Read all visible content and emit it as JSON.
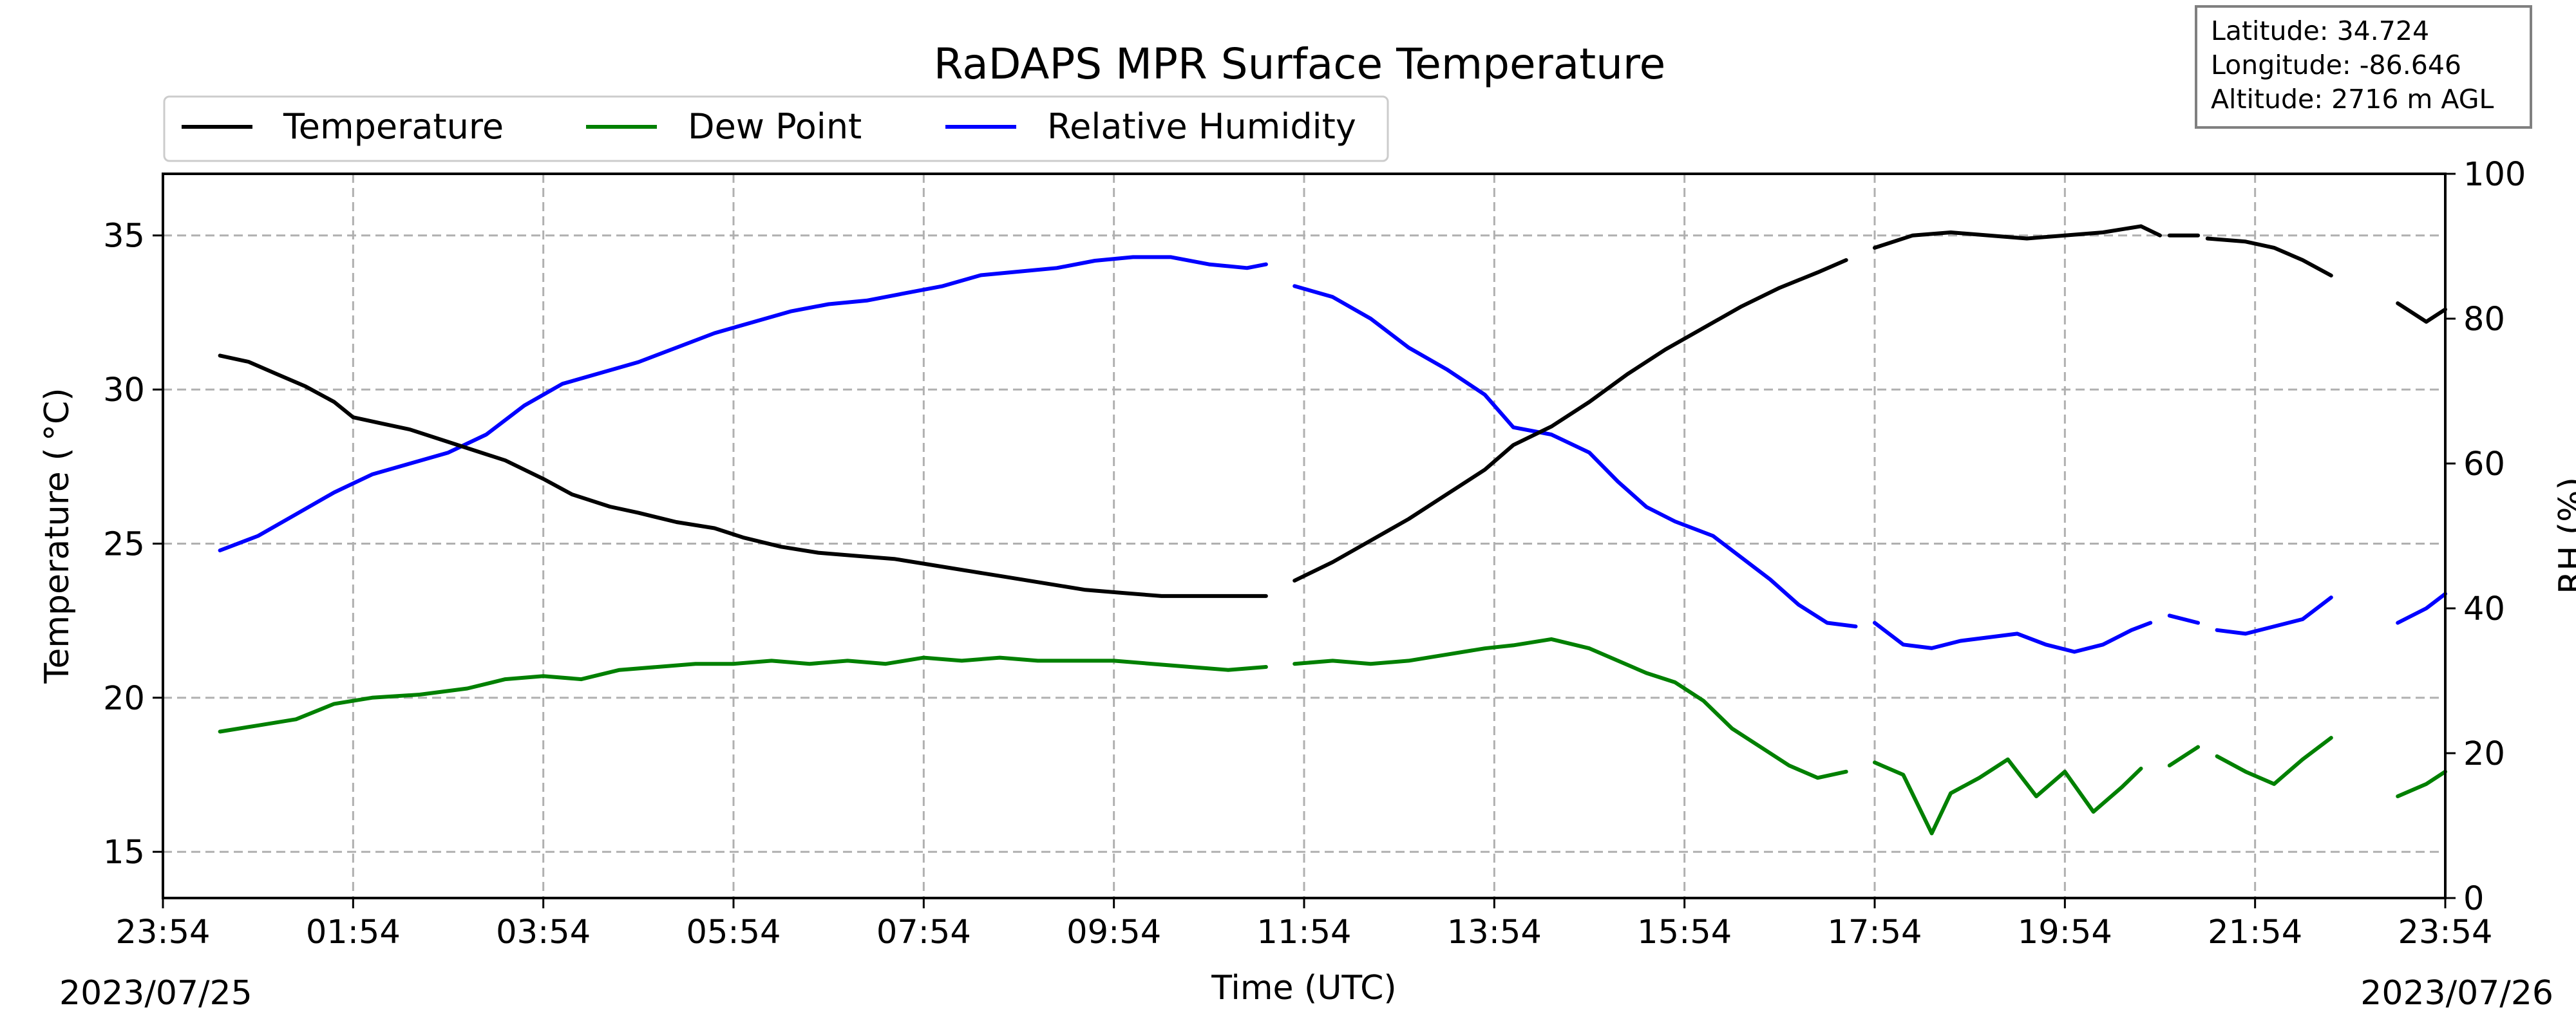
{
  "chart_data": {
    "type": "line",
    "title": "RaDAPS MPR Surface Temperature",
    "xlabel": "Time (UTC)",
    "ylabel_left": "Temperature ($^\\circ$C)",
    "ylabel_left_display": "Temperature ( °C)",
    "ylabel_right": "RH (%)",
    "x_ticks": [
      "23:54",
      "01:54",
      "03:54",
      "05:54",
      "07:54",
      "09:54",
      "11:54",
      "13:54",
      "15:54",
      "17:54",
      "19:54",
      "21:54",
      "23:54"
    ],
    "x_range_hours": [
      0,
      24
    ],
    "start_date_label": "2023/07/25",
    "end_date_label": "2023/07/26",
    "ylim_left": [
      13.5,
      37
    ],
    "yticks_left": [
      15,
      20,
      25,
      30,
      35
    ],
    "ylim_right": [
      0,
      100
    ],
    "yticks_right": [
      0,
      20,
      40,
      60,
      80,
      100
    ],
    "grid": true,
    "legend_placement": "top-left, above plot",
    "legend": [
      "Temperature",
      "Dew Point",
      "Relative Humidity"
    ],
    "info_box": {
      "latitude": "Latitude: 34.724",
      "longitude": "Longitude: -86.646",
      "altitude": "Altitude: 2716 m AGL"
    },
    "series": [
      {
        "name": "Temperature",
        "axis": "left",
        "color": "#000000",
        "segments": [
          [
            [
              0.6,
              31.1
            ],
            [
              0.9,
              30.9
            ],
            [
              1.2,
              30.5
            ],
            [
              1.5,
              30.1
            ],
            [
              1.8,
              29.6
            ],
            [
              2.0,
              29.1
            ],
            [
              2.3,
              28.9
            ],
            [
              2.6,
              28.7
            ],
            [
              3.0,
              28.3
            ],
            [
              3.3,
              28.0
            ],
            [
              3.6,
              27.7
            ],
            [
              4.0,
              27.1
            ],
            [
              4.3,
              26.6
            ],
            [
              4.7,
              26.2
            ],
            [
              5.0,
              26.0
            ],
            [
              5.4,
              25.7
            ],
            [
              5.8,
              25.5
            ],
            [
              6.1,
              25.2
            ],
            [
              6.5,
              24.9
            ],
            [
              6.9,
              24.7
            ],
            [
              7.3,
              24.6
            ],
            [
              7.7,
              24.5
            ],
            [
              8.1,
              24.3
            ],
            [
              8.5,
              24.1
            ],
            [
              8.9,
              23.9
            ],
            [
              9.3,
              23.7
            ],
            [
              9.7,
              23.5
            ],
            [
              10.1,
              23.4
            ],
            [
              10.5,
              23.3
            ],
            [
              10.9,
              23.3
            ],
            [
              11.3,
              23.3
            ],
            [
              11.6,
              23.3
            ]
          ],
          [
            [
              11.9,
              23.8
            ],
            [
              12.3,
              24.4
            ],
            [
              12.7,
              25.1
            ],
            [
              13.1,
              25.8
            ],
            [
              13.5,
              26.6
            ],
            [
              13.9,
              27.4
            ],
            [
              14.2,
              28.2
            ],
            [
              14.6,
              28.8
            ],
            [
              15.0,
              29.6
            ],
            [
              15.4,
              30.5
            ],
            [
              15.8,
              31.3
            ],
            [
              16.2,
              32.0
            ],
            [
              16.6,
              32.7
            ],
            [
              17.0,
              33.3
            ],
            [
              17.4,
              33.8
            ],
            [
              17.7,
              34.2
            ]
          ],
          [
            [
              18.0,
              34.6
            ],
            [
              18.4,
              35.0
            ],
            [
              18.8,
              35.1
            ],
            [
              19.2,
              35.0
            ],
            [
              19.6,
              34.9
            ],
            [
              20.0,
              35.0
            ],
            [
              20.4,
              35.1
            ],
            [
              20.8,
              35.3
            ],
            [
              21.0,
              35.0
            ]
          ],
          [
            [
              21.1,
              35.0
            ],
            [
              21.4,
              35.0
            ]
          ],
          [
            [
              21.5,
              34.9
            ],
            [
              21.9,
              34.8
            ],
            [
              22.2,
              34.6
            ],
            [
              22.5,
              34.2
            ],
            [
              22.8,
              33.7
            ]
          ],
          [
            [
              23.5,
              32.8
            ],
            [
              23.8,
              32.2
            ],
            [
              24.0,
              32.6
            ]
          ]
        ]
      },
      {
        "name": "Dew Point",
        "axis": "left",
        "color": "#008000",
        "segments": [
          [
            [
              0.6,
              18.9
            ],
            [
              1.0,
              19.1
            ],
            [
              1.4,
              19.3
            ],
            [
              1.8,
              19.8
            ],
            [
              2.2,
              20.0
            ],
            [
              2.7,
              20.1
            ],
            [
              3.2,
              20.3
            ],
            [
              3.6,
              20.6
            ],
            [
              4.0,
              20.7
            ],
            [
              4.4,
              20.6
            ],
            [
              4.8,
              20.9
            ],
            [
              5.2,
              21.0
            ],
            [
              5.6,
              21.1
            ],
            [
              6.0,
              21.1
            ],
            [
              6.4,
              21.2
            ],
            [
              6.8,
              21.1
            ],
            [
              7.2,
              21.2
            ],
            [
              7.6,
              21.1
            ],
            [
              8.0,
              21.3
            ],
            [
              8.4,
              21.2
            ],
            [
              8.8,
              21.3
            ],
            [
              9.2,
              21.2
            ],
            [
              9.6,
              21.2
            ],
            [
              10.0,
              21.2
            ],
            [
              10.4,
              21.1
            ],
            [
              10.8,
              21.0
            ],
            [
              11.2,
              20.9
            ],
            [
              11.6,
              21.0
            ]
          ],
          [
            [
              11.9,
              21.1
            ],
            [
              12.3,
              21.2
            ],
            [
              12.7,
              21.1
            ],
            [
              13.1,
              21.2
            ],
            [
              13.5,
              21.4
            ],
            [
              13.9,
              21.6
            ],
            [
              14.2,
              21.7
            ],
            [
              14.6,
              21.9
            ],
            [
              15.0,
              21.6
            ],
            [
              15.3,
              21.2
            ],
            [
              15.6,
              20.8
            ],
            [
              15.9,
              20.5
            ],
            [
              16.2,
              19.9
            ],
            [
              16.5,
              19.0
            ],
            [
              16.8,
              18.4
            ],
            [
              17.1,
              17.8
            ],
            [
              17.4,
              17.4
            ],
            [
              17.7,
              17.6
            ]
          ],
          [
            [
              18.0,
              17.9
            ],
            [
              18.3,
              17.5
            ],
            [
              18.6,
              15.6
            ],
            [
              18.8,
              16.9
            ],
            [
              19.1,
              17.4
            ],
            [
              19.4,
              18.0
            ],
            [
              19.7,
              16.8
            ],
            [
              20.0,
              17.6
            ],
            [
              20.3,
              16.3
            ],
            [
              20.6,
              17.1
            ],
            [
              20.8,
              17.7
            ]
          ],
          [
            [
              21.1,
              17.8
            ],
            [
              21.4,
              18.4
            ]
          ],
          [
            [
              21.6,
              18.1
            ],
            [
              21.9,
              17.6
            ],
            [
              22.2,
              17.2
            ],
            [
              22.5,
              18.0
            ],
            [
              22.8,
              18.7
            ]
          ],
          [
            [
              23.5,
              16.8
            ],
            [
              23.8,
              17.2
            ],
            [
              24.0,
              17.6
            ]
          ]
        ]
      },
      {
        "name": "Relative Humidity",
        "axis": "right",
        "color": "#0000ff",
        "segments": [
          [
            [
              0.6,
              48.0
            ],
            [
              1.0,
              50.0
            ],
            [
              1.4,
              53.0
            ],
            [
              1.8,
              56.0
            ],
            [
              2.2,
              58.5
            ],
            [
              2.6,
              60.0
            ],
            [
              3.0,
              61.5
            ],
            [
              3.4,
              64.0
            ],
            [
              3.8,
              68.0
            ],
            [
              4.2,
              71.0
            ],
            [
              4.6,
              72.5
            ],
            [
              5.0,
              74.0
            ],
            [
              5.4,
              76.0
            ],
            [
              5.8,
              78.0
            ],
            [
              6.2,
              79.5
            ],
            [
              6.6,
              81.0
            ],
            [
              7.0,
              82.0
            ],
            [
              7.4,
              82.5
            ],
            [
              7.8,
              83.5
            ],
            [
              8.2,
              84.5
            ],
            [
              8.6,
              86.0
            ],
            [
              9.0,
              86.5
            ],
            [
              9.4,
              87.0
            ],
            [
              9.8,
              88.0
            ],
            [
              10.2,
              88.5
            ],
            [
              10.6,
              88.5
            ],
            [
              11.0,
              87.5
            ],
            [
              11.4,
              87.0
            ],
            [
              11.6,
              87.5
            ]
          ],
          [
            [
              11.9,
              84.5
            ],
            [
              12.3,
              83.0
            ],
            [
              12.7,
              80.0
            ],
            [
              13.1,
              76.0
            ],
            [
              13.5,
              73.0
            ],
            [
              13.9,
              69.5
            ],
            [
              14.2,
              65.0
            ],
            [
              14.6,
              64.0
            ],
            [
              15.0,
              61.5
            ],
            [
              15.3,
              57.5
            ],
            [
              15.6,
              54.0
            ],
            [
              15.9,
              52.0
            ],
            [
              16.3,
              50.0
            ],
            [
              16.6,
              47.0
            ],
            [
              16.9,
              44.0
            ],
            [
              17.2,
              40.5
            ],
            [
              17.5,
              38.0
            ],
            [
              17.8,
              37.5
            ]
          ],
          [
            [
              18.0,
              38.0
            ],
            [
              18.3,
              35.0
            ],
            [
              18.6,
              34.5
            ],
            [
              18.9,
              35.5
            ],
            [
              19.2,
              36.0
            ],
            [
              19.5,
              36.5
            ],
            [
              19.8,
              35.0
            ],
            [
              20.1,
              34.0
            ],
            [
              20.4,
              35.0
            ],
            [
              20.7,
              37.0
            ],
            [
              20.9,
              38.0
            ]
          ],
          [
            [
              21.1,
              39.0
            ],
            [
              21.4,
              38.0
            ]
          ],
          [
            [
              21.6,
              37.0
            ],
            [
              21.9,
              36.5
            ],
            [
              22.2,
              37.5
            ],
            [
              22.5,
              38.5
            ],
            [
              22.8,
              41.5
            ]
          ],
          [
            [
              23.5,
              38.0
            ],
            [
              23.8,
              40.0
            ],
            [
              24.0,
              42.0
            ]
          ]
        ]
      }
    ]
  }
}
